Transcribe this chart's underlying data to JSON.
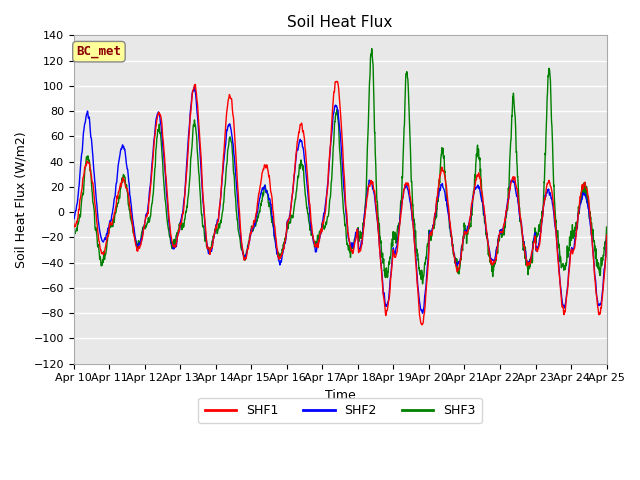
{
  "title": "Soil Heat Flux",
  "xlabel": "Time",
  "ylabel": "Soil Heat Flux (W/m2)",
  "ylim": [
    -120,
    140
  ],
  "yticks": [
    -120,
    -100,
    -80,
    -60,
    -40,
    -20,
    0,
    20,
    40,
    60,
    80,
    100,
    120,
    140
  ],
  "line_colors": {
    "SHF1": "red",
    "SHF2": "blue",
    "SHF3": "green"
  },
  "line_widths": {
    "SHF1": 1.0,
    "SHF2": 1.0,
    "SHF3": 1.0
  },
  "plot_bg_color": "#e8e8e8",
  "legend_box_label": "BC_met",
  "legend_box_color": "#ffff99",
  "legend_box_text_color": "#8b0000",
  "n_days": 15,
  "start_day": 10,
  "title_fontsize": 11,
  "label_fontsize": 9,
  "tick_fontsize": 8
}
